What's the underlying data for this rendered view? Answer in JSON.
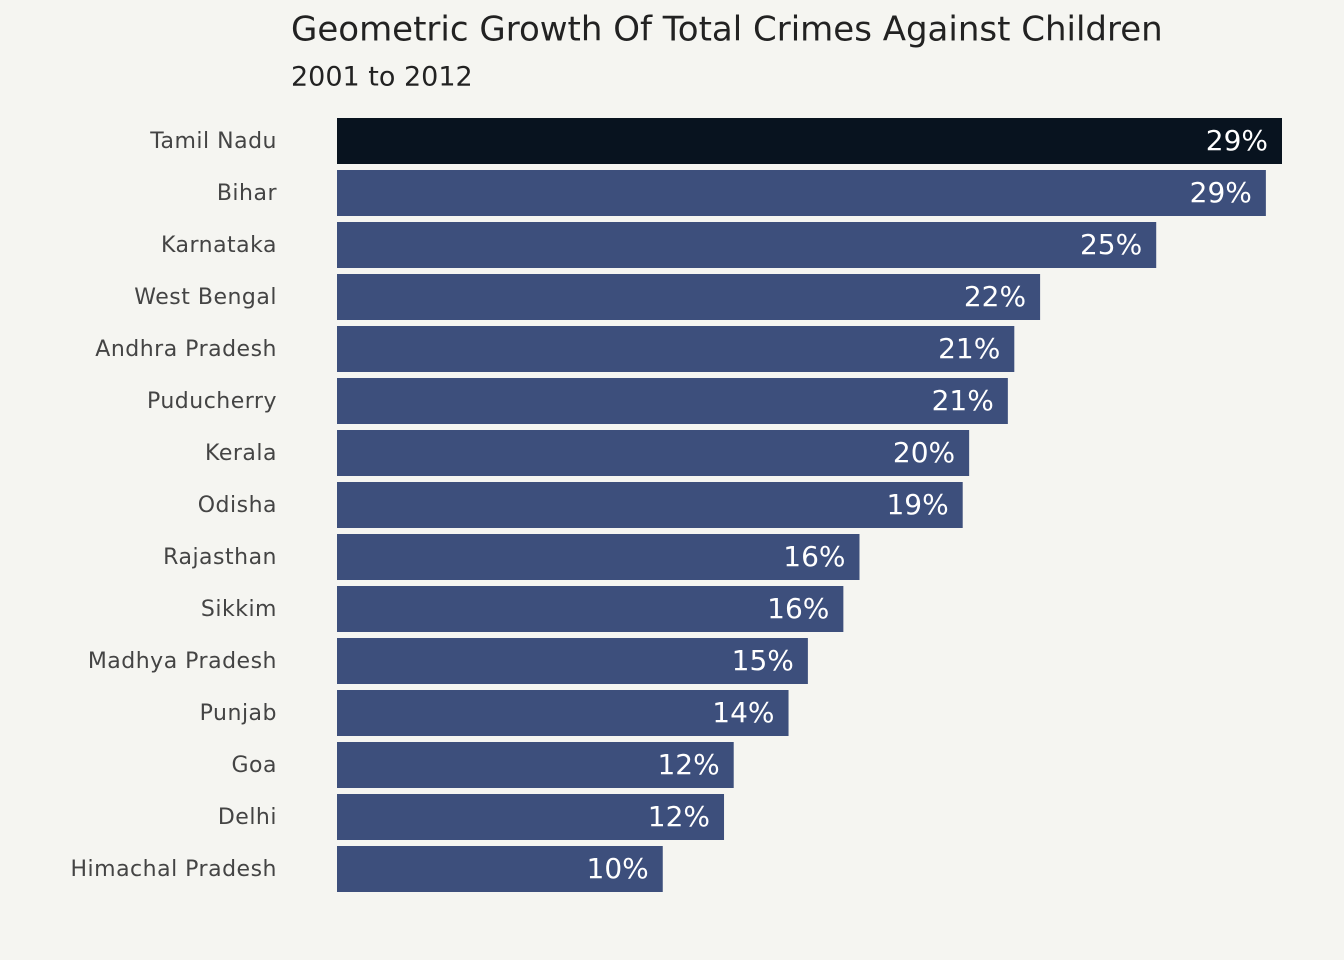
{
  "chart_data": {
    "type": "bar",
    "orientation": "horizontal",
    "title": "Geometric Growth Of Total Crimes Against Children",
    "subtitle": "2001 to 2012",
    "categories": [
      "Tamil Nadu",
      "Bihar",
      "Karnataka",
      "West Bengal",
      "Andhra Pradesh",
      "Puducherry",
      "Kerala",
      "Odisha",
      "Rajasthan",
      "Sikkim",
      "Madhya Pradesh",
      "Punjab",
      "Goa",
      "Delhi",
      "Himachal Pradesh"
    ],
    "values": [
      29.3,
      28.8,
      25.4,
      21.8,
      21.0,
      20.8,
      19.6,
      19.4,
      16.2,
      15.7,
      14.6,
      14.0,
      12.3,
      12.0,
      10.1
    ],
    "value_labels": [
      "29%",
      "29%",
      "25%",
      "22%",
      "21%",
      "21%",
      "20%",
      "19%",
      "16%",
      "16%",
      "15%",
      "14%",
      "12%",
      "12%",
      "10%"
    ],
    "colors": [
      "#08131f",
      "#3d4f7c",
      "#3d4f7c",
      "#3d4f7c",
      "#3d4f7c",
      "#3d4f7c",
      "#3d4f7c",
      "#3d4f7c",
      "#3d4f7c",
      "#3d4f7c",
      "#3d4f7c",
      "#3d4f7c",
      "#3d4f7c",
      "#3d4f7c",
      "#3d4f7c"
    ]
  }
}
